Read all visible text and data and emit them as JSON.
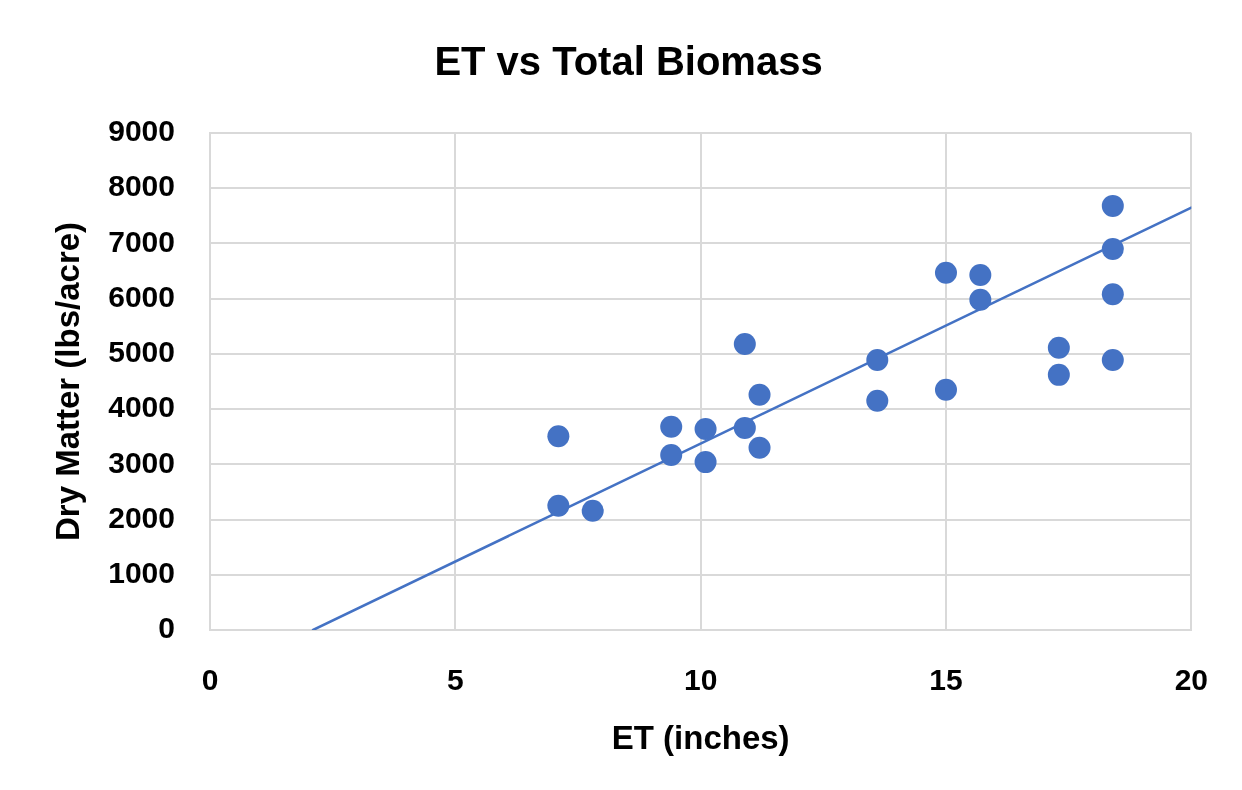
{
  "chart_data": {
    "type": "scatter",
    "title": "ET vs Total Biomass",
    "xlabel": "ET (inches)",
    "ylabel": "Dry Matter (lbs/acre)",
    "xlim": [
      0,
      20
    ],
    "xticks": [
      0,
      5,
      10,
      15,
      20
    ],
    "ylim": [
      0,
      9000
    ],
    "yticks": [
      0,
      1000,
      2000,
      3000,
      4000,
      5000,
      6000,
      7000,
      8000,
      9000
    ],
    "grid": true,
    "marker": "circle",
    "series": [
      {
        "type": "scatter",
        "color": "#4472c4",
        "x": [
          7.1,
          7.1,
          7.8,
          9.4,
          9.4,
          10.1,
          10.1,
          10.9,
          10.9,
          11.2,
          11.2,
          13.6,
          13.6,
          15.0,
          15.0,
          15.7,
          15.7,
          17.3,
          17.3,
          18.4,
          18.4,
          18.4,
          18.4
        ],
        "values": [
          3510,
          2250,
          2160,
          3680,
          3170,
          3640,
          3040,
          5180,
          3660,
          4260,
          3300,
          4890,
          4150,
          6470,
          4350,
          6430,
          5980,
          5110,
          4620,
          7680,
          6900,
          6080,
          4890
        ]
      },
      {
        "type": "line",
        "color": "#4472c4",
        "marker": "none",
        "x": [
          2.1,
          20
        ],
        "values": [
          0,
          7650
        ]
      }
    ]
  }
}
